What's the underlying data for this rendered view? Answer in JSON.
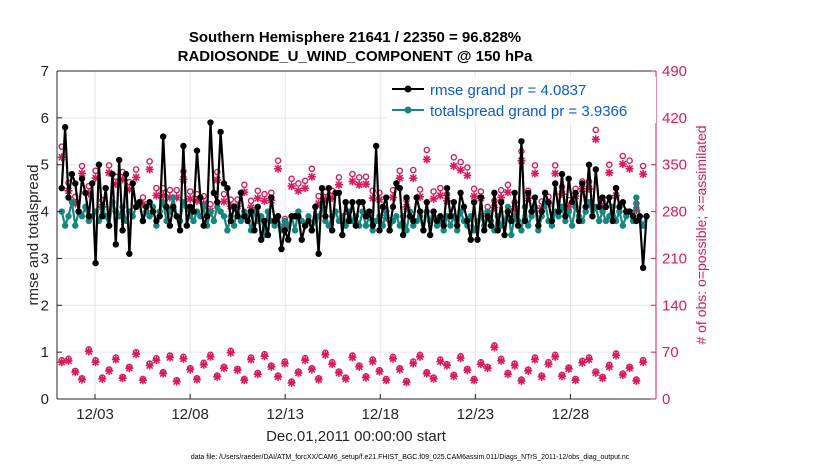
{
  "chart_data": {
    "type": "line",
    "title": "Southern Hemisphere 21641 / 22350 = 96.828%",
    "subtitle": "RADIOSONDE_U_WIND_COMPONENT @ 150 hPa",
    "xlabel": "Dec.01,2011 00:00:00 start",
    "ylabel": "rmse and totalspread",
    "ylabel_right": "# of obs: o=possible; ×=assimilated",
    "footnote": "data file: /Users/raeder/DAI/ATM_forcXX/CAM6_setup/f.e21.FHIST_BGC.f09_025.CAM6assim.011/Diags_NTrS_2011-12/obs_diag_output.nc",
    "xlim": [
      1,
      32.5
    ],
    "ylim": [
      0,
      7
    ],
    "ylim_right": [
      0,
      490
    ],
    "x_ticks": [
      3,
      8,
      13,
      18,
      23,
      28
    ],
    "x_tick_labels": [
      "12/03",
      "12/08",
      "12/13",
      "12/18",
      "12/23",
      "12/28"
    ],
    "y_ticks": [
      0,
      1,
      2,
      3,
      4,
      5,
      6,
      7
    ],
    "y_ticks_right": [
      0,
      70,
      140,
      210,
      280,
      350,
      420,
      490
    ],
    "legend": {
      "position": "top-right"
    },
    "series": [
      {
        "name": "rmse grand pr = 4.0837",
        "color": "#000000",
        "values": [
          4.5,
          5.8,
          4.3,
          4.8,
          4.6,
          4.0,
          4.7,
          4.4,
          3.9,
          4.6,
          2.9,
          5.0,
          3.9,
          4.5,
          3.7,
          4.8,
          3.3,
          5.1,
          3.6,
          4.8,
          3.1,
          4.6,
          4.1,
          4.2,
          3.8,
          4.1,
          4.2,
          4.0,
          3.8,
          3.9,
          5.6,
          4.1,
          3.7,
          4.1,
          3.9,
          3.6,
          5.4,
          3.7,
          4.1,
          4.0,
          5.3,
          4.3,
          3.7,
          3.9,
          5.9,
          4.4,
          4.2,
          5.7,
          4.6,
          4.5,
          3.8,
          4.1,
          3.9,
          4.4,
          3.9,
          3.8,
          4.0,
          3.6,
          4.1,
          3.4,
          3.8,
          3.5,
          4.3,
          3.8,
          3.9,
          3.2,
          3.6,
          3.4,
          3.9,
          3.9,
          3.9,
          3.4,
          3.7,
          3.8,
          3.6,
          4.1,
          3.1,
          4.5,
          3.9,
          4.5,
          3.6,
          4.4,
          4.4,
          3.5,
          4.2,
          3.8,
          4.2,
          3.7,
          4.2,
          4.2,
          3.9,
          4.0,
          3.7,
          5.4,
          3.6,
          4.1,
          4.3,
          3.6,
          4.1,
          4.6,
          4.5,
          3.5,
          4.3,
          3.9,
          3.8,
          4.3,
          4.0,
          3.6,
          4.2,
          3.5,
          4.0,
          3.8,
          3.9,
          3.7,
          4.5,
          3.9,
          4.2,
          3.7,
          4.4,
          4.1,
          3.8,
          3.4,
          4.2,
          3.4,
          4.3,
          3.6,
          3.9,
          3.7,
          4.4,
          3.6,
          4.2,
          3.5,
          4.0,
          3.8,
          4.4,
          3.7,
          5.5,
          3.8,
          4.4,
          4.0,
          4.3,
          3.7,
          4.0,
          4.4,
          4.2,
          3.8,
          4.6,
          4.0,
          4.8,
          3.9,
          4.7,
          4.2,
          4.4,
          3.8,
          4.6,
          4.1,
          5.0,
          3.9,
          4.9,
          4.1,
          4.3,
          4.1,
          4.3,
          3.8,
          4.5,
          4.1,
          4.2,
          4.0,
          4.0,
          3.9,
          3.8,
          3.9,
          2.8,
          3.9
        ]
      },
      {
        "name": "totalspread grand pr = 3.9366",
        "color": "#16877f",
        "values": [
          4.0,
          3.7,
          3.9,
          4.2,
          3.7,
          4.0,
          3.9,
          4.1,
          3.8,
          3.9,
          4.0,
          3.8,
          4.1,
          3.9,
          3.7,
          4.2,
          4.0,
          3.9,
          4.1,
          3.8,
          4.0,
          3.9,
          4.1,
          4.2,
          3.8,
          4.0,
          3.9,
          4.1,
          3.7,
          4.0,
          4.2,
          3.8,
          4.0,
          4.3,
          3.9,
          3.8,
          4.2,
          4.1,
          3.9,
          3.8,
          4.0,
          3.9,
          4.1,
          3.7,
          4.0,
          3.8,
          4.1,
          4.0,
          3.9,
          3.6,
          3.9,
          3.7,
          4.1,
          3.8,
          4.0,
          3.9,
          3.6,
          4.0,
          3.8,
          3.9,
          3.5,
          4.0,
          3.8,
          3.7,
          3.9,
          3.6,
          3.8,
          3.7,
          3.9,
          3.6,
          4.0,
          3.8,
          3.7,
          3.9,
          3.6,
          3.8,
          3.9,
          4.1,
          3.8,
          3.7,
          3.9,
          4.0,
          3.8,
          3.9,
          3.7,
          4.0,
          3.8,
          3.9,
          3.7,
          4.0,
          3.7,
          3.9,
          3.6,
          3.8,
          3.9,
          3.7,
          4.0,
          3.6,
          3.8,
          3.9,
          3.7,
          3.9,
          3.6,
          4.0,
          3.7,
          3.8,
          3.9,
          3.6,
          4.0,
          3.8,
          3.9,
          3.7,
          3.8,
          3.6,
          3.9,
          3.7,
          3.9,
          3.6,
          4.0,
          3.8,
          3.7,
          3.9,
          3.6,
          3.8,
          3.9,
          3.7,
          4.0,
          3.8,
          3.6,
          3.9,
          3.7,
          3.8,
          4.1,
          3.5,
          3.9,
          3.8,
          3.6,
          4.1,
          3.7,
          3.9,
          4.1,
          3.6,
          3.9,
          4.2,
          3.8,
          3.7,
          4.0,
          3.9,
          4.1,
          3.8,
          4.0,
          3.7,
          4.1,
          3.9,
          3.8,
          4.0,
          4.2,
          3.9,
          4.1,
          3.8,
          4.0,
          3.8,
          3.9,
          4.1,
          3.8,
          4.0,
          3.7,
          3.9,
          4.0,
          3.8,
          4.3,
          3.9,
          3.7,
          3.9
        ]
      }
    ],
    "obs_possible_high": [
      377,
      323,
      302,
      348,
      318,
      341,
      297,
      349,
      332,
      339,
      324,
      343,
      301,
      355,
      315,
      315,
      312,
      312,
      340,
      310,
      306,
      303,
      291,
      339,
      306,
      298,
      298,
      320,
      296,
      311,
      306,
      308,
      356,
      269,
      329,
      322,
      326,
      344,
      303,
      309,
      311,
      331,
      272,
      336,
      331,
      332,
      311,
      308,
      281,
      312,
      341,
      297,
      342,
      313,
      372,
      310,
      315,
      306,
      361,
      354,
      346,
      314,
      310,
      287,
      296,
      312,
      320,
      294,
      370,
      311,
      349,
      295,
      302,
      349,
      317,
      297,
      314,
      325,
      325,
      402,
      296,
      350,
      315,
      363,
      356,
      292,
      348,
      298,
      327,
      307,
      363,
      372,
      289,
      308,
      352,
      351,
      293,
      302,
      344,
      276,
      304,
      314,
      321,
      396,
      304,
      327,
      340,
      309,
      349,
      280,
      319,
      339,
      296,
      318,
      379,
      314,
      345,
      301,
      369,
      345,
      303,
      367,
      310,
      341,
      327,
      307,
      363,
      328,
      296,
      339,
      297,
      343,
      311,
      304,
      296,
      351,
      315,
      344,
      294,
      319,
      306,
      332,
      323,
      338,
      319,
      361,
      304,
      339,
      292,
      305,
      286,
      354,
      307,
      316,
      315,
      307,
      344,
      304,
      319,
      297,
      337,
      305,
      332,
      304,
      311,
      302,
      307,
      296,
      317,
      330
    ],
    "obs_assimilated_high": [
      361,
      311,
      292,
      337,
      307,
      330,
      287,
      338,
      321,
      328,
      313,
      331,
      291,
      343,
      304,
      304,
      301,
      301,
      328,
      299,
      296,
      292,
      281,
      327,
      295,
      288,
      288,
      309,
      286,
      300,
      296,
      297,
      344,
      261,
      318,
      311,
      315,
      332,
      292,
      298,
      300,
      320,
      263,
      325,
      320,
      321,
      300,
      298,
      271,
      301,
      330,
      287,
      330,
      302,
      358,
      299,
      304,
      296,
      348,
      342,
      334,
      303,
      300,
      277,
      286,
      301,
      309,
      284,
      356,
      300,
      337,
      285,
      292,
      337,
      306,
      287,
      303,
      314,
      314,
      388,
      286,
      338,
      304,
      351,
      344,
      282,
      336,
      288,
      316,
      297,
      350,
      358,
      279,
      297,
      340,
      339,
      283,
      292,
      333,
      266,
      293,
      303,
      310,
      382,
      293,
      316,
      328,
      298,
      337,
      270,
      308,
      327,
      286,
      307,
      366,
      303,
      333,
      291,
      356,
      333,
      292,
      354,
      299,
      329,
      316,
      297,
      351,
      317,
      286,
      327,
      287,
      331,
      300,
      293,
      286,
      339,
      304,
      332,
      284,
      308,
      296,
      320,
      312,
      326,
      308,
      349,
      294,
      327,
      282,
      294,
      276,
      342,
      296,
      305,
      304,
      296,
      332,
      294,
      308,
      287,
      325,
      295,
      320,
      294,
      300,
      292,
      297,
      286,
      306,
      319
    ],
    "obs_possible_low": [
      58,
      60,
      42,
      31,
      74,
      58,
      32,
      44,
      62,
      33,
      48,
      70,
      30,
      53,
      61,
      40,
      65,
      28,
      63,
      46,
      31,
      54,
      66,
      35,
      48,
      72,
      45,
      30,
      62,
      39,
      67,
      50,
      35,
      56,
      26,
      41,
      61,
      46,
      31,
      69,
      55,
      41,
      32,
      65,
      50,
      34,
      59,
      43,
      30,
      63,
      46,
      27,
      56,
      66,
      40,
      32,
      59,
      52,
      36,
      64,
      45,
      30,
      55,
      48,
      80,
      60,
      39,
      53,
      29,
      44,
      62,
      35,
      55,
      66,
      36,
      47,
      30,
      57,
      62,
      41,
      33,
      51,
      68,
      38,
      48,
      29,
      58,
      67,
      35,
      45,
      59,
      30,
      55,
      43,
      62,
      48,
      33,
      62,
      28,
      55,
      45,
      69,
      39,
      57,
      48,
      33,
      60,
      44,
      52,
      66,
      35,
      58,
      28,
      51,
      42,
      62,
      35,
      51,
      68,
      29,
      60,
      45,
      33,
      56,
      39,
      69,
      29,
      47,
      38,
      59,
      53,
      82,
      28,
      45,
      54,
      66,
      39,
      56,
      30,
      61,
      49,
      35,
      69,
      52,
      38,
      55,
      31,
      63,
      43,
      52,
      34,
      60,
      42,
      56,
      30,
      50,
      70,
      33,
      46,
      62,
      44,
      53,
      36,
      55,
      30,
      58,
      41,
      52,
      36,
      2
    ],
    "obs_assimilated_low": [
      55,
      57,
      40,
      29,
      71,
      55,
      30,
      42,
      59,
      31,
      46,
      67,
      28,
      50,
      58,
      38,
      62,
      26,
      60,
      44,
      29,
      51,
      63,
      33,
      46,
      69,
      43,
      28,
      59,
      37,
      64,
      48,
      33,
      53,
      24,
      39,
      58,
      44,
      29,
      66,
      52,
      39,
      30,
      62,
      48,
      32,
      56,
      41,
      28,
      60,
      44,
      25,
      53,
      63,
      38,
      30,
      56,
      50,
      34,
      61,
      43,
      28,
      52,
      46,
      77,
      57,
      37,
      50,
      27,
      42,
      59,
      33,
      52,
      63,
      34,
      45,
      28,
      54,
      59,
      39,
      31,
      48,
      65,
      36,
      46,
      27,
      55,
      64,
      33,
      43,
      56,
      28,
      52,
      41,
      59,
      46,
      31,
      59,
      26,
      52,
      43,
      66,
      37,
      54,
      46,
      31,
      57,
      42,
      49,
      63,
      33,
      55,
      26,
      48,
      40,
      59,
      33,
      48,
      65,
      27,
      57,
      43,
      31,
      53,
      37,
      66,
      27,
      45,
      36,
      56,
      50,
      79,
      26,
      43,
      51,
      63,
      37,
      53,
      28,
      58,
      47,
      33,
      66,
      49,
      36,
      52,
      29,
      60,
      41,
      49,
      32,
      57,
      40,
      53,
      28,
      47,
      67,
      31,
      44,
      59,
      42,
      50,
      34,
      52,
      28,
      55,
      39,
      49,
      34,
      1
    ]
  }
}
